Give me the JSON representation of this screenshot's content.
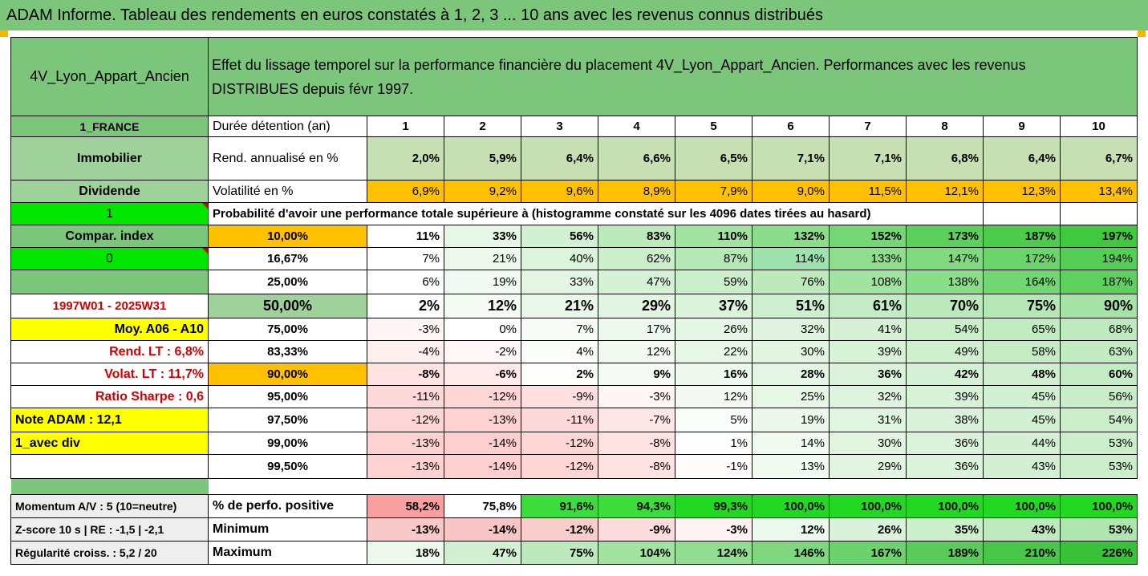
{
  "title": "ADAM Informe. Tableau des rendements en euros constatés à 1, 2, 3 ... 10 ans avec les revenus connus distribués",
  "fund_name": "4V_Lyon_Appart_Ancien",
  "description_line1": "Effet du lissage temporel sur la performance financière du placement 4V_Lyon_Appart_Ancien. Performances avec les revenus",
  "description_line2": "DISTRIBUES depuis févr 1997.",
  "side": {
    "country": "1_FRANCE",
    "category": "Immobilier",
    "type": "Dividende",
    "one": "1",
    "compar_index": "Compar. index",
    "zero": "0",
    "period": "1997W01 - 2025W31",
    "moy": "Moy. A06 - A10",
    "rend_lt": "Rend. LT :   6,8%",
    "volat_lt": "Volat. LT :   11,7%",
    "sharpe": "Ratio Sharpe :   0,6",
    "note": "Note ADAM : 12,1",
    "avec_div": "1_avec div"
  },
  "header": {
    "duree": "Durée détention (an)",
    "years": [
      "1",
      "2",
      "3",
      "4",
      "5",
      "6",
      "7",
      "8",
      "9",
      "10"
    ]
  },
  "rend": {
    "label": "Rend. annualisé en %",
    "values": [
      "2,0%",
      "5,9%",
      "6,4%",
      "6,6%",
      "6,5%",
      "7,1%",
      "7,1%",
      "6,8%",
      "6,4%",
      "6,7%"
    ]
  },
  "volat": {
    "label": "Volatilité en %",
    "values": [
      "6,9%",
      "9,2%",
      "9,6%",
      "8,9%",
      "7,9%",
      "9,0%",
      "11,5%",
      "12,1%",
      "12,3%",
      "13,4%"
    ]
  },
  "prob_title": "Probabilité d'avoir une performance totale supérieure à (histogramme constaté sur les 4096 dates tirées au hasard)",
  "prob_rows": [
    {
      "pct": "10,00%",
      "values": [
        "11%",
        "33%",
        "56%",
        "83%",
        "110%",
        "132%",
        "152%",
        "173%",
        "187%",
        "197%"
      ],
      "colors": [
        "#ffffff",
        "#e6f7e6",
        "#d2f0d2",
        "#bdeabd",
        "#a2e3a2",
        "#8bdd8b",
        "#74d674",
        "#5dcf5d",
        "#4ccb4c",
        "#40c840"
      ]
    },
    {
      "pct": "16,67%",
      "values": [
        "7%",
        "21%",
        "40%",
        "62%",
        "87%",
        "114%",
        "133%",
        "147%",
        "172%",
        "194%"
      ],
      "colors": [
        "#ffffff",
        "#eef9ee",
        "#dcf3dc",
        "#cbeecb",
        "#b4e8b4",
        "#9ee2b0",
        "#8ede8e",
        "#80da80",
        "#6bd46b",
        "#55ce55"
      ]
    },
    {
      "pct": "25,00%",
      "values": [
        "6%",
        "19%",
        "33%",
        "47%",
        "59%",
        "76%",
        "108%",
        "138%",
        "164%",
        "187%"
      ],
      "colors": [
        "#ffffff",
        "#f0faf0",
        "#e3f5e3",
        "#d6f2d6",
        "#cbeecb",
        "#bceabc",
        "#a2e3a2",
        "#8ade8a",
        "#72d672",
        "#5dd05d"
      ]
    },
    {
      "pct": "50,00%",
      "values": [
        "2%",
        "12%",
        "21%",
        "29%",
        "37%",
        "51%",
        "61%",
        "70%",
        "75%",
        "90%"
      ],
      "colors": [
        "#ffffff",
        "#f3fbf3",
        "#eaf8ea",
        "#e2f5e2",
        "#dbf3db",
        "#cff0cf",
        "#c4ecc4",
        "#bbe9bb",
        "#b5e7b5",
        "#a6e3a6"
      ]
    },
    {
      "pct": "75,00%",
      "values": [
        "-3%",
        "0%",
        "7%",
        "17%",
        "26%",
        "32%",
        "41%",
        "54%",
        "65%",
        "68%"
      ],
      "colors": [
        "#fff5f5",
        "#ffffff",
        "#f7fcf7",
        "#eef9ee",
        "#e4f6e4",
        "#dff4df",
        "#d6f1d6",
        "#caedca",
        "#c1ebc1",
        "#bfeabf"
      ]
    },
    {
      "pct": "83,33%",
      "values": [
        "-4%",
        "-2%",
        "4%",
        "12%",
        "22%",
        "30%",
        "39%",
        "49%",
        "58%",
        "63%"
      ],
      "colors": [
        "#fff0f0",
        "#fff7f7",
        "#fafdfa",
        "#f2faf2",
        "#e7f7e7",
        "#e1f5e1",
        "#d8f2d8",
        "#cfefcf",
        "#c6ecc6",
        "#c2ebc2"
      ]
    },
    {
      "pct": "90,00%",
      "values": [
        "-8%",
        "-6%",
        "2%",
        "9%",
        "16%",
        "28%",
        "36%",
        "42%",
        "48%",
        "60%"
      ],
      "colors": [
        "#ffe3e3",
        "#ffe9e9",
        "#fcfefc",
        "#f4fbf4",
        "#eef9ee",
        "#e3f6e3",
        "#dbf3db",
        "#d5f1d5",
        "#d0efd0",
        "#c4ecc4"
      ]
    },
    {
      "pct": "95,00%",
      "values": [
        "-11%",
        "-12%",
        "-9%",
        "-3%",
        "12%",
        "25%",
        "32%",
        "39%",
        "45%",
        "56%"
      ],
      "colors": [
        "#ffd9d9",
        "#ffd6d6",
        "#ffdfdf",
        "#fff5f5",
        "#f2faf2",
        "#e6f7e6",
        "#dff4df",
        "#d8f2d8",
        "#d2f0d2",
        "#c8edc8"
      ]
    },
    {
      "pct": "97,50%",
      "values": [
        "-12%",
        "-13%",
        "-11%",
        "-7%",
        "5%",
        "19%",
        "31%",
        "38%",
        "45%",
        "54%"
      ],
      "colors": [
        "#ffd6d6",
        "#ffd2d2",
        "#ffd9d9",
        "#ffe6e6",
        "#f9fdf9",
        "#ecf8ec",
        "#e0f5e0",
        "#d9f2d9",
        "#d2f0d2",
        "#caedca"
      ]
    },
    {
      "pct": "99,00%",
      "values": [
        "-13%",
        "-14%",
        "-12%",
        "-8%",
        "1%",
        "14%",
        "30%",
        "36%",
        "44%",
        "53%"
      ],
      "colors": [
        "#ffd2d2",
        "#ffcfcf",
        "#ffd6d6",
        "#ffe3e3",
        "#fdfefd",
        "#f0faf0",
        "#e1f5e1",
        "#dbf3db",
        "#d3f0d3",
        "#cbeecb"
      ]
    },
    {
      "pct": "99,50%",
      "values": [
        "-13%",
        "-14%",
        "-12%",
        "-8%",
        "-1%",
        "13%",
        "29%",
        "36%",
        "43%",
        "53%"
      ],
      "colors": [
        "#ffd2d2",
        "#ffcfcf",
        "#ffd6d6",
        "#ffe3e3",
        "#fffbfb",
        "#f1faf1",
        "#e2f5e2",
        "#dbf3db",
        "#d4f0d4",
        "#cbeecb"
      ]
    }
  ],
  "bottom": {
    "momentum": "Momentum A/V : 5 (10=neutre)",
    "zscore": "Z-score 10 s  |  RE : -1,5  |  -2,1",
    "regul": "Régularité croiss. : 5,2 / 20",
    "positive": {
      "label": "% de perfo. positive",
      "values": [
        "58,2%",
        "75,8%",
        "91,6%",
        "94,3%",
        "99,3%",
        "100,0%",
        "100,0%",
        "100,0%",
        "100,0%",
        "100,0%"
      ],
      "colors": [
        "#f8a0a0",
        "#ffffff",
        "#3ddc3d",
        "#3ddc3d",
        "#22d822",
        "#22d822",
        "#22d822",
        "#22d822",
        "#22d822",
        "#22d822"
      ]
    },
    "minimum": {
      "label": "Minimum",
      "values": [
        "-13%",
        "-14%",
        "-12%",
        "-9%",
        "-3%",
        "12%",
        "26%",
        "35%",
        "43%",
        "53%"
      ],
      "colors": [
        "#f8c9c9",
        "#f8c5c5",
        "#facdcd",
        "#fcdcdc",
        "#fff2f2",
        "#eef9ee",
        "#d9f2d9",
        "#cbeecb",
        "#bfeabf",
        "#afe5af"
      ]
    },
    "maximum": {
      "label": "Maximum",
      "values": [
        "18%",
        "47%",
        "75%",
        "104%",
        "124%",
        "146%",
        "167%",
        "189%",
        "210%",
        "226%"
      ],
      "colors": [
        "#eef9ee",
        "#d3f0d3",
        "#bdeabd",
        "#a2e3a2",
        "#91dd91",
        "#7ed77e",
        "#6cd26c",
        "#5acb5a",
        "#48c648",
        "#38c238"
      ]
    }
  },
  "colors": {
    "green": "#7cc67c",
    "yellow": "#ffff00",
    "orange": "#ffc000",
    "bright_green": "#00e600",
    "light_green": "#c6e0b4"
  }
}
